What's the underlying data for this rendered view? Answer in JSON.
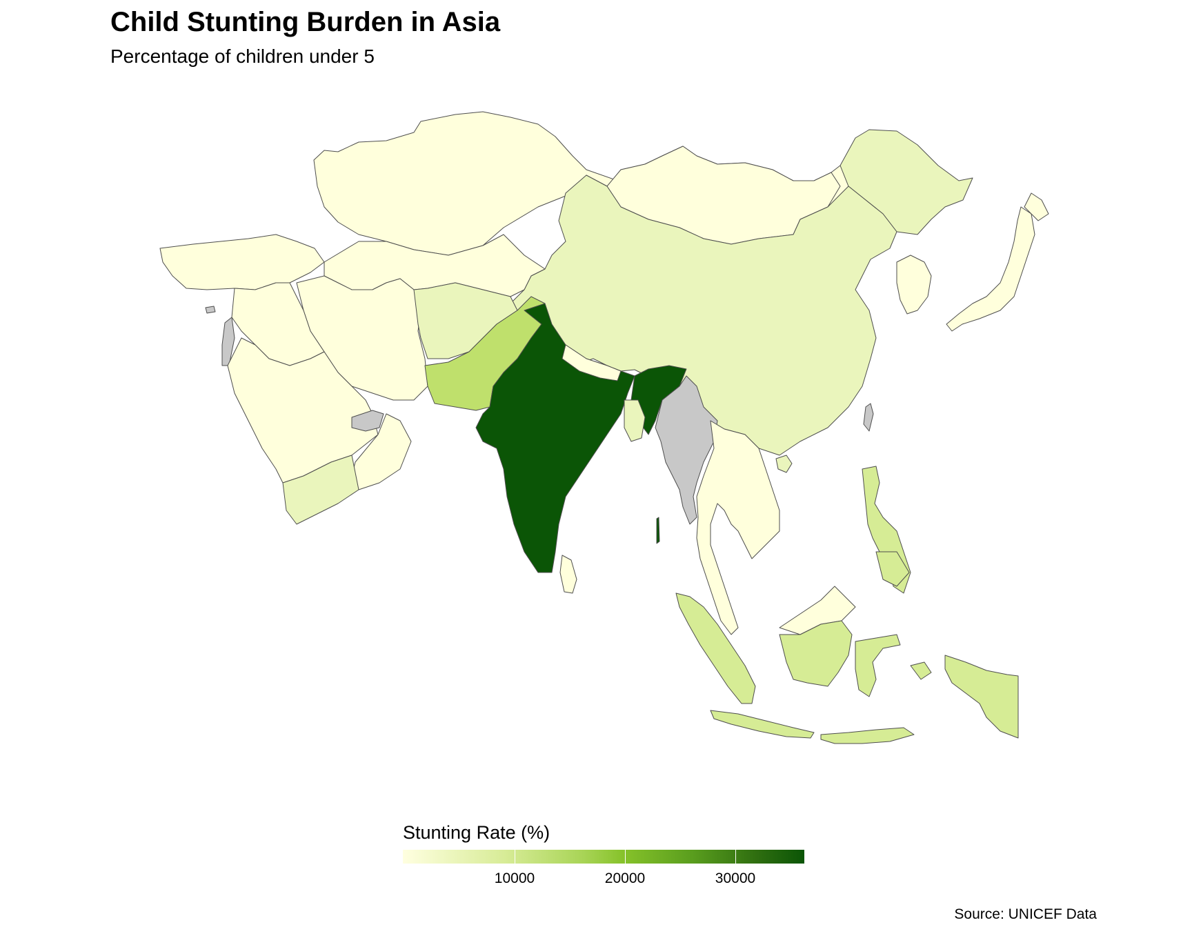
{
  "title": "Child Stunting Burden in Asia",
  "subtitle": "Percentage of children under 5",
  "legend": {
    "title": "Stunting Rate (%)",
    "ticks": [
      "10000",
      "20000",
      "30000"
    ],
    "low_color": "#ffffe0",
    "high_color": "#0b5506",
    "missing_color": "#c8c8c8"
  },
  "source": "Source: UNICEF Data",
  "colors": {
    "very_low": "#ffffdc",
    "low": "#eaf5bc",
    "low_mid": "#d6ec95",
    "mid": "#bfe06c",
    "high": "#0b5506",
    "no_data": "#c8c8c8",
    "border": "#4d4d4d"
  }
}
